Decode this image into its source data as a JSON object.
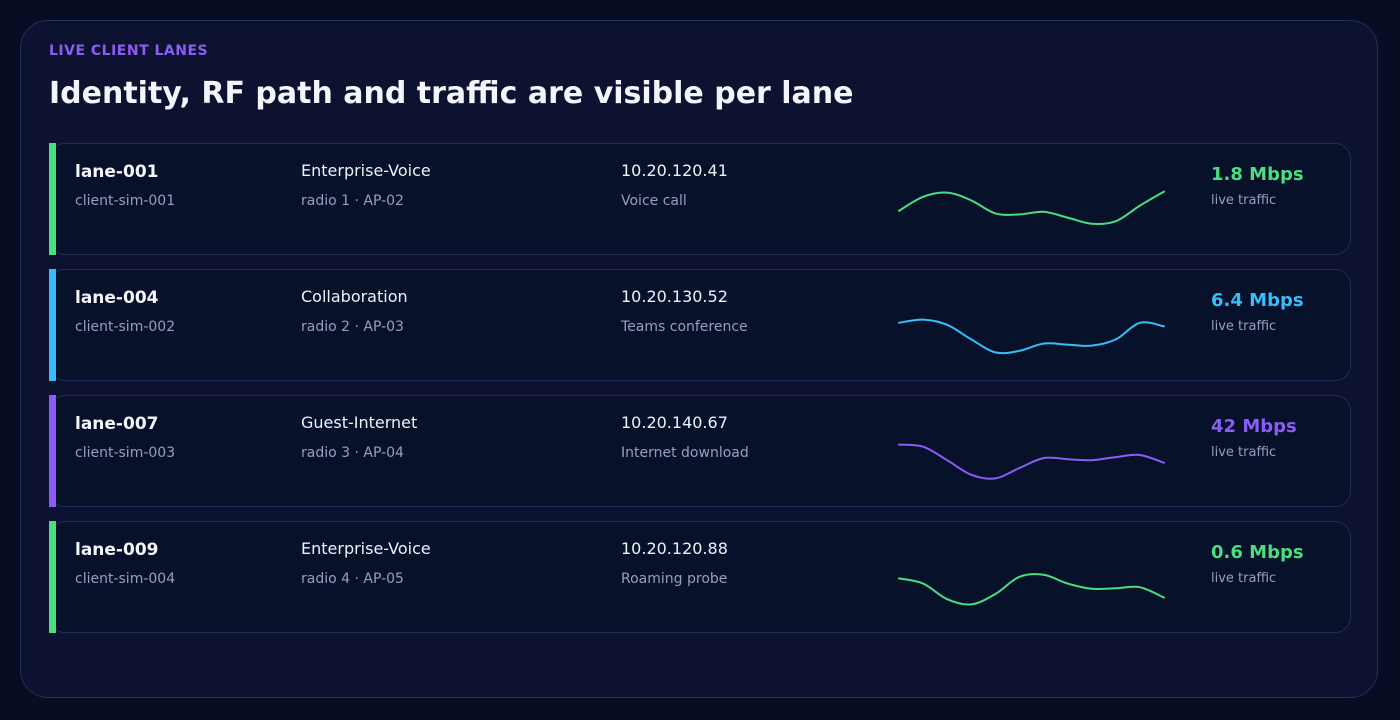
{
  "header": {
    "eyebrow": "LIVE CLIENT LANES",
    "title": "Identity, RF path and traffic are visible per lane"
  },
  "lanes": [
    {
      "lane_id": "lane-001",
      "client": "client-sim-001",
      "ssid": "Enterprise-Voice",
      "radio": "radio 1 · AP-02",
      "ip": "10.20.120.41",
      "app": "Voice call",
      "rate": "1.8 Mbps",
      "rate_label": "live traffic",
      "color": "#4ade80",
      "traffic": [
        0.35,
        0.62,
        0.7,
        0.55,
        0.3,
        0.28,
        0.33,
        0.22,
        0.1,
        0.15,
        0.45,
        0.72
      ]
    },
    {
      "lane_id": "lane-004",
      "client": "client-sim-002",
      "ssid": "Collaboration",
      "radio": "radio 2 · AP-03",
      "ip": "10.20.130.52",
      "app": "Teams conference",
      "rate": "6.4 Mbps",
      "rate_label": "live traffic",
      "color": "#38bdf8",
      "traffic": [
        0.62,
        0.68,
        0.58,
        0.3,
        0.05,
        0.08,
        0.22,
        0.2,
        0.18,
        0.3,
        0.62,
        0.55
      ]
    },
    {
      "lane_id": "lane-007",
      "client": "client-sim-003",
      "ssid": "Guest-Internet",
      "radio": "radio 3 · AP-04",
      "ip": "10.20.140.67",
      "app": "Internet download",
      "rate": "42 Mbps",
      "rate_label": "live traffic",
      "color": "#8b5cf6",
      "traffic": [
        0.7,
        0.66,
        0.4,
        0.12,
        0.05,
        0.25,
        0.44,
        0.42,
        0.4,
        0.46,
        0.5,
        0.35
      ]
    },
    {
      "lane_id": "lane-009",
      "client": "client-sim-004",
      "ssid": "Enterprise-Voice",
      "radio": "radio 4 · AP-05",
      "ip": "10.20.120.88",
      "app": "Roaming probe",
      "rate": "0.6 Mbps",
      "rate_label": "live traffic",
      "color": "#4ade80",
      "traffic": [
        0.55,
        0.45,
        0.15,
        0.05,
        0.25,
        0.58,
        0.62,
        0.45,
        0.35,
        0.36,
        0.38,
        0.18
      ]
    }
  ]
}
